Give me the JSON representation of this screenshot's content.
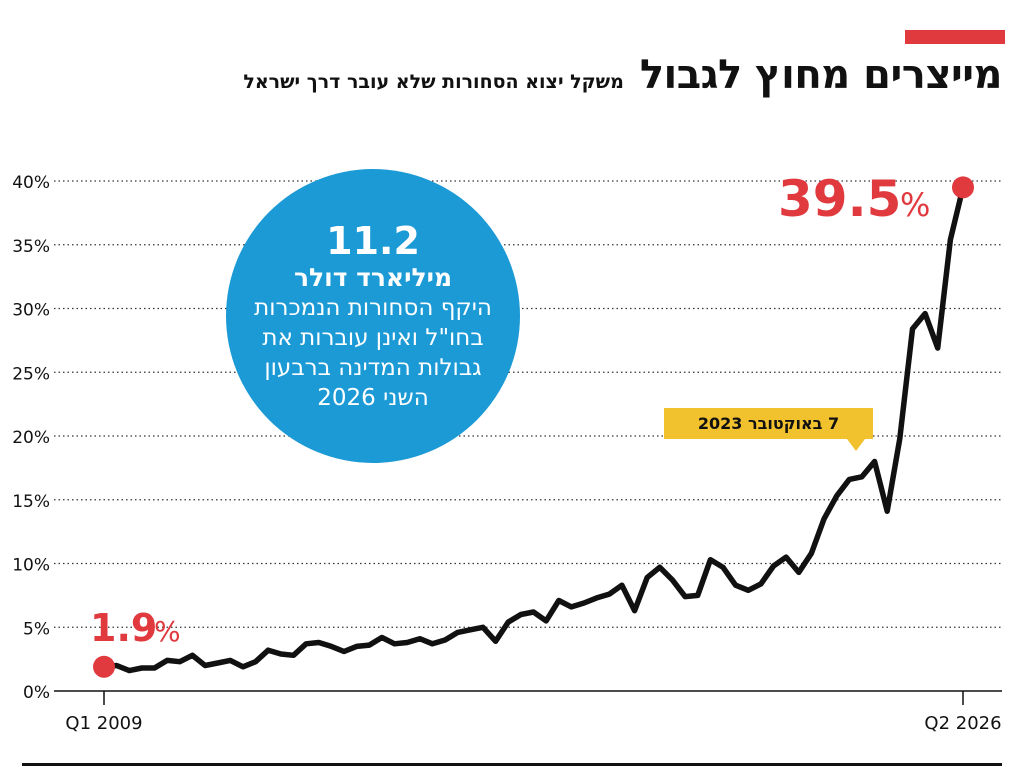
{
  "header": {
    "title": "מייצרים מחוץ לגבול",
    "subtitle": "משקל יצוא הסחורות שלא עובר דרך ישראל",
    "accent_color": "#e0393e"
  },
  "bubble": {
    "value": "11.2",
    "unit": "מיליארד דולר",
    "text": "היקף הסחורות הנמכרות בחו\"ל ואינן עוברות את גבולות המדינה ברבעון השני 2026",
    "color": "#1c9ad6"
  },
  "event_label": {
    "text": "7 באוקטובר 2023",
    "color": "#f2c12e",
    "x_index": 58
  },
  "annotations": {
    "start_value": "1.9",
    "end_value": "39.5",
    "percent_sign": "%",
    "color": "#e0393e"
  },
  "chart_data": {
    "type": "line",
    "title": "מייצרים מחוץ לגבול",
    "subtitle": "משקל יצוא הסחורות שלא עובר דרך ישראל",
    "xlabel": "",
    "ylabel": "",
    "x_tick_labels": [
      "Q1 2009",
      "Q2 2026"
    ],
    "y_tick_labels": [
      "0%",
      "5%",
      "10%",
      "15%",
      "20%",
      "25%",
      "30%",
      "35%",
      "40%"
    ],
    "ylim": [
      0,
      40
    ],
    "grid": "horizontal dotted",
    "line_color": "#111111",
    "series": [
      {
        "values": [
          1.9,
          2.0,
          1.6,
          1.8,
          1.8,
          2.4,
          2.3,
          2.8,
          2.0,
          2.2,
          2.4,
          1.9,
          2.3,
          3.2,
          2.9,
          2.8,
          3.7,
          3.8,
          3.5,
          3.1,
          3.5,
          3.6,
          4.2,
          3.7,
          3.8,
          4.1,
          3.7,
          4.0,
          4.6,
          4.8,
          5.0,
          3.9,
          5.4,
          6.0,
          6.2,
          5.5,
          7.1,
          6.6,
          6.9,
          7.3,
          7.6,
          8.3,
          6.3,
          8.9,
          9.7,
          8.7,
          7.4,
          7.5,
          10.3,
          9.7,
          8.3,
          7.9,
          8.4,
          9.8,
          10.5,
          9.3,
          10.8,
          13.5,
          15.3,
          16.6,
          16.8,
          18.0,
          14.1,
          19.8,
          28.4,
          29.6,
          26.9,
          35.4,
          39.5
        ]
      }
    ]
  }
}
